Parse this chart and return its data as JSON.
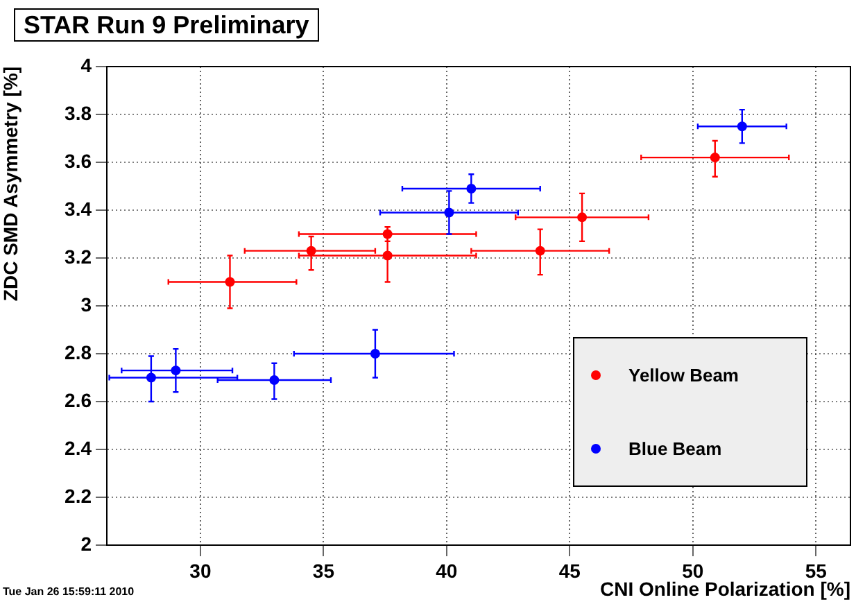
{
  "chart_data": {
    "type": "scatter",
    "title": "STAR Run 9 Preliminary",
    "xlabel": "CNI Online Polarization [%]",
    "ylabel": "ZDC SMD Asymmetry [%]",
    "xlim": [
      26.2,
      56.4
    ],
    "xticks": [
      30,
      35,
      40,
      45,
      50,
      55
    ],
    "ylim": [
      2,
      4
    ],
    "yticks": [
      2,
      2.2,
      2.4,
      2.6,
      2.8,
      3,
      3.2,
      3.4,
      3.6,
      3.8,
      4
    ],
    "grid": true,
    "legend": "bottom right",
    "marker": "circle",
    "annotations": [
      "Tue Jan 26 15:59:11 2010"
    ],
    "series": [
      {
        "name": "Yellow Beam",
        "color": "#ff0000",
        "x": [
          31.2,
          34.5,
          37.6,
          37.6,
          43.8,
          45.5,
          50.9
        ],
        "values": [
          3.1,
          3.23,
          3.3,
          3.21,
          3.23,
          3.37,
          3.62
        ],
        "errors": [
          [
            2.99,
            3.21
          ],
          [
            3.15,
            3.29
          ],
          [
            3.27,
            3.33
          ],
          [
            3.1,
            3.33
          ],
          [
            3.13,
            3.32
          ],
          [
            3.27,
            3.47
          ],
          [
            3.54,
            3.69
          ]
        ],
        "xerrors": [
          [
            28.7,
            33.9
          ],
          [
            31.8,
            37.1
          ],
          [
            34.0,
            41.2
          ],
          [
            34.0,
            41.2
          ],
          [
            41.0,
            46.6
          ],
          [
            42.8,
            48.2
          ],
          [
            47.9,
            53.9
          ]
        ]
      },
      {
        "name": "Blue Beam",
        "color": "#0000ff",
        "x": [
          28.0,
          29.0,
          33.0,
          37.1,
          40.1,
          41.0,
          52.0
        ],
        "values": [
          2.7,
          2.73,
          2.69,
          2.8,
          3.39,
          3.49,
          3.75
        ],
        "errors": [
          [
            2.6,
            2.79
          ],
          [
            2.64,
            2.82
          ],
          [
            2.61,
            2.76
          ],
          [
            2.7,
            2.9
          ],
          [
            3.3,
            3.48
          ],
          [
            3.43,
            3.55
          ],
          [
            3.68,
            3.82
          ]
        ],
        "xerrors": [
          [
            26.3,
            31.5
          ],
          [
            26.8,
            31.3
          ],
          [
            30.7,
            35.3
          ],
          [
            33.8,
            40.3
          ],
          [
            37.3,
            42.9
          ],
          [
            38.2,
            43.8
          ],
          [
            50.2,
            53.8
          ]
        ]
      }
    ]
  }
}
